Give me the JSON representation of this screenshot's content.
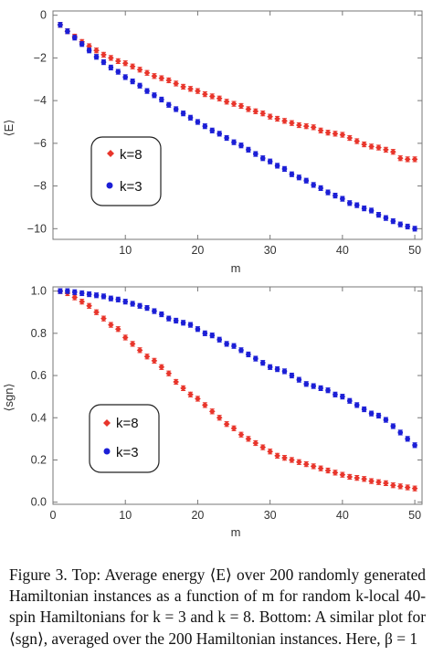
{
  "chart_data": [
    {
      "type": "scatter",
      "title": "",
      "xlabel": "m",
      "ylabel": "⟨E⟩",
      "xlim": [
        0,
        51
      ],
      "ylim": [
        -10.5,
        0.2
      ],
      "xticks": [
        10,
        20,
        30,
        40,
        50
      ],
      "yticks": [
        0,
        -2,
        -4,
        -6,
        -8,
        -10
      ],
      "error_bars": true,
      "legend_position": "center-left",
      "series": [
        {
          "name": "k=8",
          "color": "#e8352b",
          "marker": "diamond",
          "x": [
            1,
            2,
            3,
            4,
            5,
            6,
            7,
            8,
            9,
            10,
            11,
            12,
            13,
            14,
            15,
            16,
            17,
            18,
            19,
            20,
            21,
            22,
            23,
            24,
            25,
            26,
            27,
            28,
            29,
            30,
            31,
            32,
            33,
            34,
            35,
            36,
            37,
            38,
            39,
            40,
            41,
            42,
            43,
            44,
            45,
            46,
            47,
            48,
            49,
            50
          ],
          "y": [
            -0.45,
            -0.75,
            -1.0,
            -1.25,
            -1.45,
            -1.65,
            -1.85,
            -2.0,
            -2.15,
            -2.25,
            -2.4,
            -2.55,
            -2.7,
            -2.85,
            -2.95,
            -3.05,
            -3.2,
            -3.35,
            -3.45,
            -3.55,
            -3.7,
            -3.8,
            -3.9,
            -4.05,
            -4.15,
            -4.25,
            -4.4,
            -4.5,
            -4.6,
            -4.75,
            -4.85,
            -4.95,
            -5.05,
            -5.15,
            -5.2,
            -5.25,
            -5.4,
            -5.5,
            -5.55,
            -5.6,
            -5.75,
            -5.9,
            -6.05,
            -6.15,
            -6.2,
            -6.3,
            -6.4,
            -6.7,
            -6.75,
            -6.75
          ]
        },
        {
          "name": "k=3",
          "color": "#1c1fd6",
          "marker": "circle",
          "x": [
            1,
            2,
            3,
            4,
            5,
            6,
            7,
            8,
            9,
            10,
            11,
            12,
            13,
            14,
            15,
            16,
            17,
            18,
            19,
            20,
            21,
            22,
            23,
            24,
            25,
            26,
            27,
            28,
            29,
            30,
            31,
            32,
            33,
            34,
            35,
            36,
            37,
            38,
            39,
            40,
            41,
            42,
            43,
            44,
            45,
            46,
            47,
            48,
            49,
            50
          ],
          "y": [
            -0.45,
            -0.75,
            -1.05,
            -1.35,
            -1.65,
            -1.95,
            -2.2,
            -2.45,
            -2.65,
            -2.9,
            -3.1,
            -3.3,
            -3.55,
            -3.75,
            -3.95,
            -4.2,
            -4.4,
            -4.6,
            -4.8,
            -5.0,
            -5.2,
            -5.4,
            -5.55,
            -5.75,
            -5.95,
            -6.1,
            -6.3,
            -6.5,
            -6.7,
            -6.85,
            -7.05,
            -7.2,
            -7.45,
            -7.6,
            -7.75,
            -7.95,
            -8.1,
            -8.3,
            -8.45,
            -8.6,
            -8.8,
            -8.9,
            -9.05,
            -9.15,
            -9.35,
            -9.5,
            -9.65,
            -9.8,
            -9.9,
            -10.0
          ]
        }
      ]
    },
    {
      "type": "scatter",
      "title": "",
      "xlabel": "m",
      "ylabel": "⟨sgn⟩",
      "xlim": [
        0,
        51
      ],
      "ylim": [
        -0.01,
        1.02
      ],
      "xticks": [
        0,
        10,
        20,
        30,
        40,
        50
      ],
      "yticks": [
        0.0,
        0.2,
        0.4,
        0.6,
        0.8,
        1.0
      ],
      "ytick_labels": [
        "0.0",
        "0.2",
        "0.4",
        "0.6",
        "0.8",
        "1.0"
      ],
      "error_bars": true,
      "legend_position": "lower-left",
      "series": [
        {
          "name": "k=8",
          "color": "#e8352b",
          "marker": "diamond",
          "x": [
            1,
            2,
            3,
            4,
            5,
            6,
            7,
            8,
            9,
            10,
            11,
            12,
            13,
            14,
            15,
            16,
            17,
            18,
            19,
            20,
            21,
            22,
            23,
            24,
            25,
            26,
            27,
            28,
            29,
            30,
            31,
            32,
            33,
            34,
            35,
            36,
            37,
            38,
            39,
            40,
            41,
            42,
            43,
            44,
            45,
            46,
            47,
            48,
            49,
            50
          ],
          "y": [
            1.0,
            0.99,
            0.97,
            0.95,
            0.93,
            0.9,
            0.87,
            0.84,
            0.82,
            0.78,
            0.75,
            0.72,
            0.69,
            0.67,
            0.64,
            0.61,
            0.57,
            0.54,
            0.51,
            0.49,
            0.46,
            0.43,
            0.4,
            0.37,
            0.35,
            0.32,
            0.3,
            0.28,
            0.26,
            0.24,
            0.22,
            0.21,
            0.2,
            0.19,
            0.18,
            0.17,
            0.16,
            0.15,
            0.14,
            0.13,
            0.12,
            0.115,
            0.11,
            0.1,
            0.095,
            0.09,
            0.08,
            0.075,
            0.07,
            0.065
          ]
        },
        {
          "name": "k=3",
          "color": "#1c1fd6",
          "marker": "circle",
          "x": [
            1,
            2,
            3,
            4,
            5,
            6,
            7,
            8,
            9,
            10,
            11,
            12,
            13,
            14,
            15,
            16,
            17,
            18,
            19,
            20,
            21,
            22,
            23,
            24,
            25,
            26,
            27,
            28,
            29,
            30,
            31,
            32,
            33,
            34,
            35,
            36,
            37,
            38,
            39,
            40,
            41,
            42,
            43,
            44,
            45,
            46,
            47,
            48,
            49,
            50
          ],
          "y": [
            1.0,
            1.0,
            0.995,
            0.99,
            0.985,
            0.98,
            0.975,
            0.965,
            0.96,
            0.95,
            0.94,
            0.93,
            0.92,
            0.905,
            0.89,
            0.87,
            0.86,
            0.85,
            0.84,
            0.82,
            0.8,
            0.79,
            0.77,
            0.75,
            0.74,
            0.72,
            0.7,
            0.68,
            0.66,
            0.64,
            0.63,
            0.62,
            0.6,
            0.58,
            0.56,
            0.55,
            0.54,
            0.53,
            0.51,
            0.5,
            0.48,
            0.46,
            0.44,
            0.42,
            0.41,
            0.39,
            0.36,
            0.33,
            0.3,
            0.27
          ]
        }
      ]
    }
  ],
  "caption": "Figure 3. Top: Average energy ⟨E⟩ over 200 randomly generated Hamiltonian instances as a function of m for random k-local 40-spin Hamiltonians for k = 3 and k = 8. Bottom: A similar plot for ⟨sgn⟩, averaged over the 200 Hamiltonian instances. Here, β = 1"
}
